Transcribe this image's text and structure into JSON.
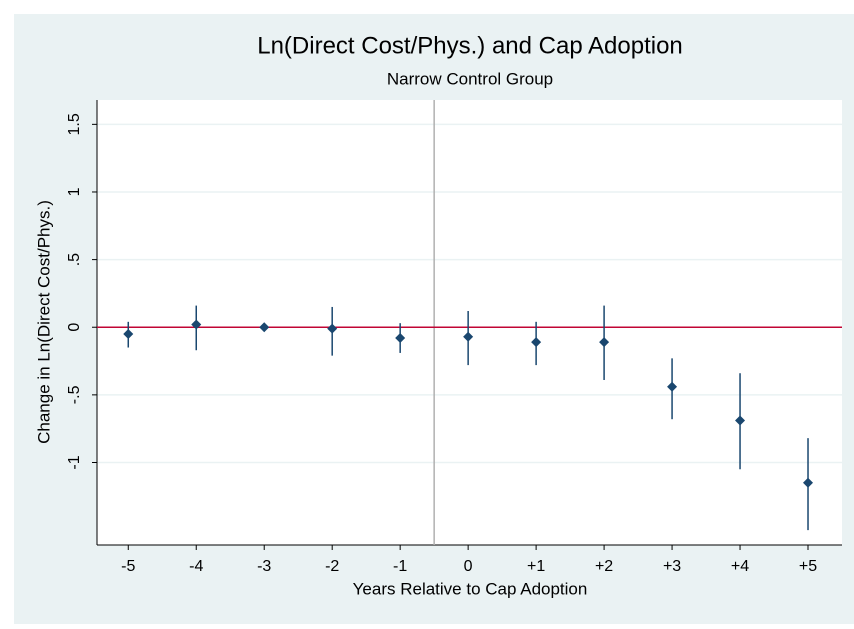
{
  "chart_data": {
    "type": "errorbar",
    "title": "Ln(Direct Cost/Phys.) and Cap Adoption",
    "subtitle": "Narrow Control Group",
    "x_label": "Years Relative to Cap Adoption",
    "y_label": "Change in Ln(Direct Cost/Phys.)",
    "x": [
      -5,
      -4,
      -3,
      -2,
      -1,
      0,
      1,
      2,
      3,
      4,
      5
    ],
    "values": [
      -0.05,
      0.02,
      0.0,
      -0.01,
      -0.08,
      -0.07,
      -0.11,
      -0.11,
      -0.44,
      -0.69,
      -1.15
    ],
    "lower": [
      -0.15,
      -0.17,
      -0.01,
      -0.21,
      -0.19,
      -0.28,
      -0.28,
      -0.39,
      -0.68,
      -1.05,
      -1.5
    ],
    "upper": [
      0.04,
      0.16,
      0.01,
      0.15,
      0.03,
      0.12,
      0.04,
      0.16,
      -0.23,
      -0.34,
      -0.82
    ],
    "color": "#1a476f",
    "xlim": [
      -5.46,
      5.5
    ],
    "ylim": [
      -1.61,
      1.68
    ],
    "xticks": [
      -5,
      -4,
      -3,
      -2,
      -1,
      0,
      {
        "value": 1,
        "label": "+1"
      },
      {
        "value": 2,
        "label": "+2"
      },
      {
        "value": 3,
        "label": "+3"
      },
      {
        "value": 4,
        "label": "+4"
      },
      {
        "value": 5,
        "label": "+5"
      }
    ],
    "yticks": [
      -1,
      {
        "value": -0.5,
        "label": "-.5"
      },
      0,
      {
        "value": 0.5,
        "label": ".5"
      },
      1,
      1.5
    ],
    "xline": -0.5,
    "xline_color": "#b0b0b0",
    "yline": 0,
    "yline_color": "#c10534",
    "grid": true
  }
}
